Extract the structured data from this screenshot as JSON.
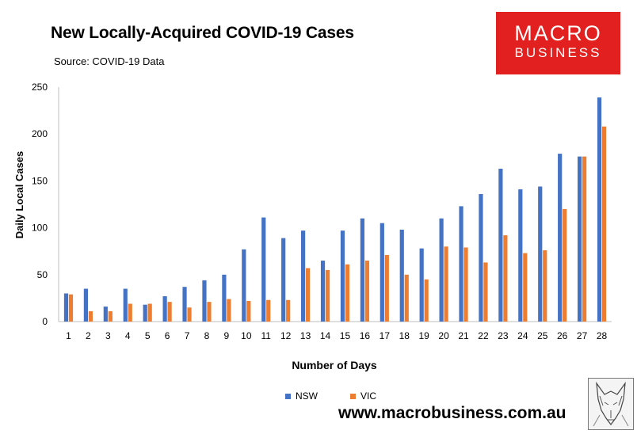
{
  "header": {
    "title": "New Locally-Acquired COVID-19 Cases",
    "subtitle": "Source: COVID-19 Data"
  },
  "logo": {
    "line1": "MACRO",
    "line2": "BUSINESS",
    "color": "#e1201f"
  },
  "footer": {
    "website": "www.macrobusiness.com.au",
    "mascot_icon": "wolf-sketch-icon"
  },
  "chart_data": {
    "type": "bar",
    "title": "New Locally-Acquired COVID-19 Cases",
    "xlabel": "Number of Days",
    "ylabel": "Daily Local Cases",
    "ylim": [
      0,
      250
    ],
    "yticks": [
      0,
      50,
      100,
      150,
      200,
      250
    ],
    "grid": false,
    "legend_position": "bottom",
    "categories": [
      "1",
      "2",
      "3",
      "4",
      "5",
      "6",
      "7",
      "8",
      "9",
      "10",
      "11",
      "12",
      "13",
      "14",
      "15",
      "16",
      "17",
      "18",
      "19",
      "20",
      "21",
      "22",
      "23",
      "24",
      "25",
      "26",
      "27",
      "28"
    ],
    "series": [
      {
        "name": "NSW",
        "color": "#4472c4",
        "values": [
          30,
          35,
          16,
          35,
          18,
          27,
          37,
          44,
          50,
          77,
          111,
          89,
          97,
          65,
          97,
          110,
          105,
          98,
          78,
          110,
          123,
          136,
          163,
          141,
          144,
          179,
          176,
          239
        ]
      },
      {
        "name": "VIC",
        "color": "#ed7d31",
        "values": [
          29,
          11,
          11,
          19,
          19,
          21,
          15,
          21,
          24,
          22,
          23,
          23,
          57,
          55,
          61,
          65,
          71,
          50,
          45,
          80,
          79,
          63,
          92,
          73,
          76,
          120,
          176,
          208
        ]
      }
    ]
  }
}
